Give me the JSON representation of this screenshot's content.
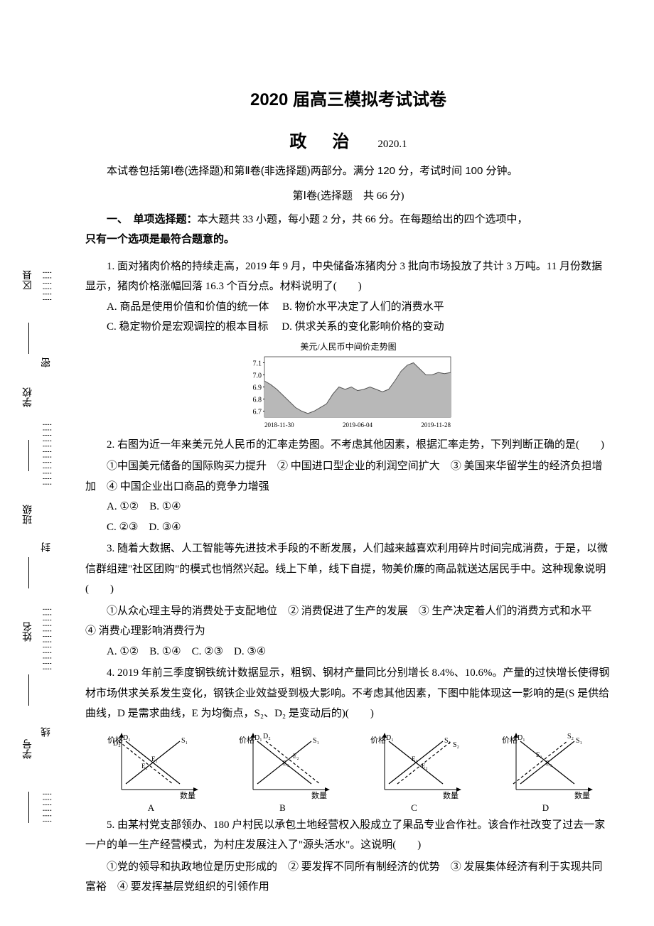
{
  "margin": {
    "labels_col1": [
      "区县",
      "学校",
      "班级",
      "姓名",
      "学号"
    ],
    "labels_col2": [
      "密",
      "封",
      "线"
    ]
  },
  "title": "2020 届高三模拟考试试卷",
  "subject": "政治",
  "date": "2020.1",
  "instructions": "本试卷包括第Ⅰ卷(选择题)和第Ⅱ卷(非选择题)两部分。满分 120 分，考试时间 100 分钟。",
  "section1": {
    "header": "第Ⅰ卷(选择题　共 66 分)",
    "intro_bold": "一、　单项选择题：",
    "intro_rest": "本大题共 33 小题，每小题 2 分，共 66 分。在每题给出的四个选项中，",
    "intro_bold2": "只有一个选项是最符合题意的。"
  },
  "q1": {
    "stem": "1. 面对猪肉价格的持续走高，2019 年 9 月，中央储备冻猪肉分 3 批向市场投放了共计 3 万吨。11 月份数据显示，猪肉价格涨幅回落 16.3 个百分点。材料说明了(　　)",
    "A": "A. 商品是使用价值和价值的统一体",
    "B": "B. 物价水平决定了人们的消费水平",
    "C": "C. 稳定物价是宏观调控的根本目标",
    "D": "D. 供求关系的变化影响价格的变动"
  },
  "chart1": {
    "caption": "美元/人民币中间价走势图",
    "y_ticks": [
      "7.1",
      "7.0",
      "6.9",
      "6.8",
      "6.7"
    ],
    "x_ticks": [
      "2018-11-30",
      "2019-06-04",
      "2019-11-28"
    ],
    "y_min": 6.65,
    "y_max": 7.15,
    "fill_color": "#b8b8b8",
    "stroke_color": "#555555",
    "bg_color": "#ffffff",
    "data_y": [
      6.95,
      6.92,
      6.88,
      6.83,
      6.78,
      6.73,
      6.7,
      6.68,
      6.7,
      6.73,
      6.76,
      6.84,
      6.9,
      6.88,
      6.9,
      6.87,
      6.88,
      6.9,
      6.88,
      6.86,
      6.88,
      6.95,
      7.03,
      7.08,
      7.1,
      7.05,
      7.0,
      7.0,
      7.02,
      7.01,
      7.02
    ]
  },
  "q2": {
    "stem": "2. 右图为近一年来美元兑人民币的汇率走势图。不考虑其他因素，根据汇率走势，下列判断正确的是(　　)",
    "sub": "①中国美元储备的国际购买力提升　② 中国进口型企业的利润空间扩大　③ 美国来华留学生的经济负担增加　④ 中国企业出口商品的竞争力增强",
    "row1": "A. ①②　B. ①④",
    "row2": "C. ②③　D. ③④"
  },
  "q3": {
    "stem": "3. 随着大数据、人工智能等先进技术手段的不断发展，人们越来越喜欢利用碎片时间完成消费，于是，以微信群组建\"社区团购\"的模式也悄然兴起。线上下单，线下自提，物美价廉的商品就送达居民手中。这种现象说明(　　)",
    "sub": "①从众心理主导的消费处于支配地位　② 消费促进了生产的发展　③ 生产决定着人们的消费方式和水平　④ 消费心理影响消费行为",
    "choices": "A. ①②　B. ①④　C. ②③　D. ③④"
  },
  "q4": {
    "stem": "4. 2019 年前三季度钢铁统计数据显示，粗钢、钢材产量同比分别增长 8.4%、10.6%。产量的过快增长使得钢材市场供求关系发生变化，钢铁企业效益受到极大影响。不考虑其他因素，下图中能体现这一影响的是(S 是供给曲线，D 是需求曲线，E 为均衡点，S₂、D₂ 是变动后的)(　　)"
  },
  "mini_charts": {
    "labels": [
      "A",
      "B",
      "C",
      "D"
    ],
    "y_label": "价格",
    "x_label": "数量",
    "variants": [
      {
        "d_shift": "left",
        "s_shift": "none"
      },
      {
        "d_shift": "right",
        "s_shift": "none"
      },
      {
        "d_shift": "none",
        "s_shift": "right"
      },
      {
        "d_shift": "none",
        "s_shift": "left"
      }
    ]
  },
  "q5": {
    "stem": "5. 由某村党支部领办、180 户村民以承包土地经营权入股成立了果品专业合作社。该合作社改变了过去一家一户的单一生产经营模式，为村庄发展注入了\"源头活水\"。这说明(　　)",
    "sub": "①党的领导和执政地位是历史形成的　② 要发挥不同所有制经济的优势　③ 发展集体经济有利于实现共同富裕　④ 要发挥基层党组织的引领作用"
  }
}
